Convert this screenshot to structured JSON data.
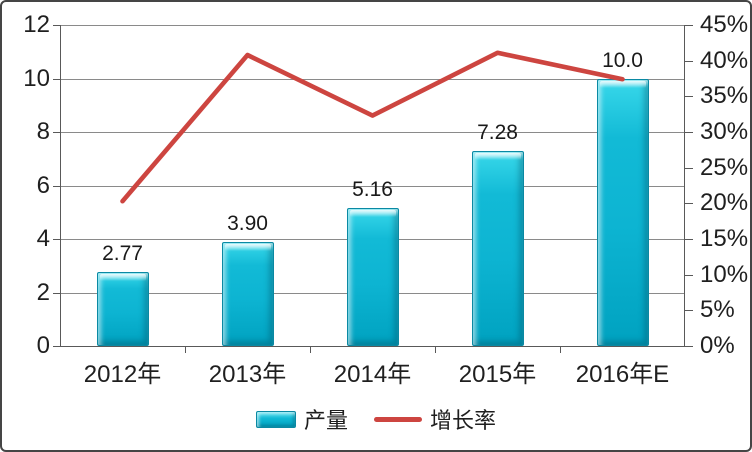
{
  "chart_data": {
    "type": "bar",
    "subtype": "combo-bar-line",
    "title": "",
    "categories": [
      "2012年",
      "2013年",
      "2014年",
      "2015年",
      "2016年E"
    ],
    "series": [
      {
        "name": "产量",
        "type": "bar",
        "axis": "left",
        "values": [
          2.77,
          3.9,
          5.16,
          7.28,
          10.0
        ],
        "value_labels": [
          "2.77",
          "3.90",
          "5.16",
          "7.28",
          "10.0"
        ],
        "color": "#0db4d2"
      },
      {
        "name": "增长率",
        "type": "line",
        "axis": "right",
        "values_percent": [
          20.3,
          40.8,
          32.3,
          41.1,
          37.4
        ],
        "color": "#cd4540"
      }
    ],
    "left_axis": {
      "min": 0,
      "max": 12,
      "step": 2,
      "tick_labels": [
        "0",
        "2",
        "4",
        "6",
        "8",
        "10",
        "12"
      ]
    },
    "right_axis": {
      "min": 0,
      "max": 45,
      "step": 5,
      "tick_labels": [
        "0%",
        "5%",
        "10%",
        "15%",
        "20%",
        "25%",
        "30%",
        "35%",
        "40%",
        "45%"
      ]
    },
    "grid": true,
    "legend_position": "bottom",
    "legend": [
      {
        "label": "产量",
        "swatch": "bar"
      },
      {
        "label": "增长率",
        "swatch": "line"
      }
    ]
  },
  "colors": {
    "bar_fill": "#0db4d2",
    "bar_highlight": "#38d8ea",
    "bar_border": "#0a89a3",
    "line": "#cd4540",
    "gridline": "#8a8a8a",
    "axis": "#595959",
    "text": "#1f1f1f",
    "frame_border": "#454545",
    "background": "#ffffff"
  }
}
